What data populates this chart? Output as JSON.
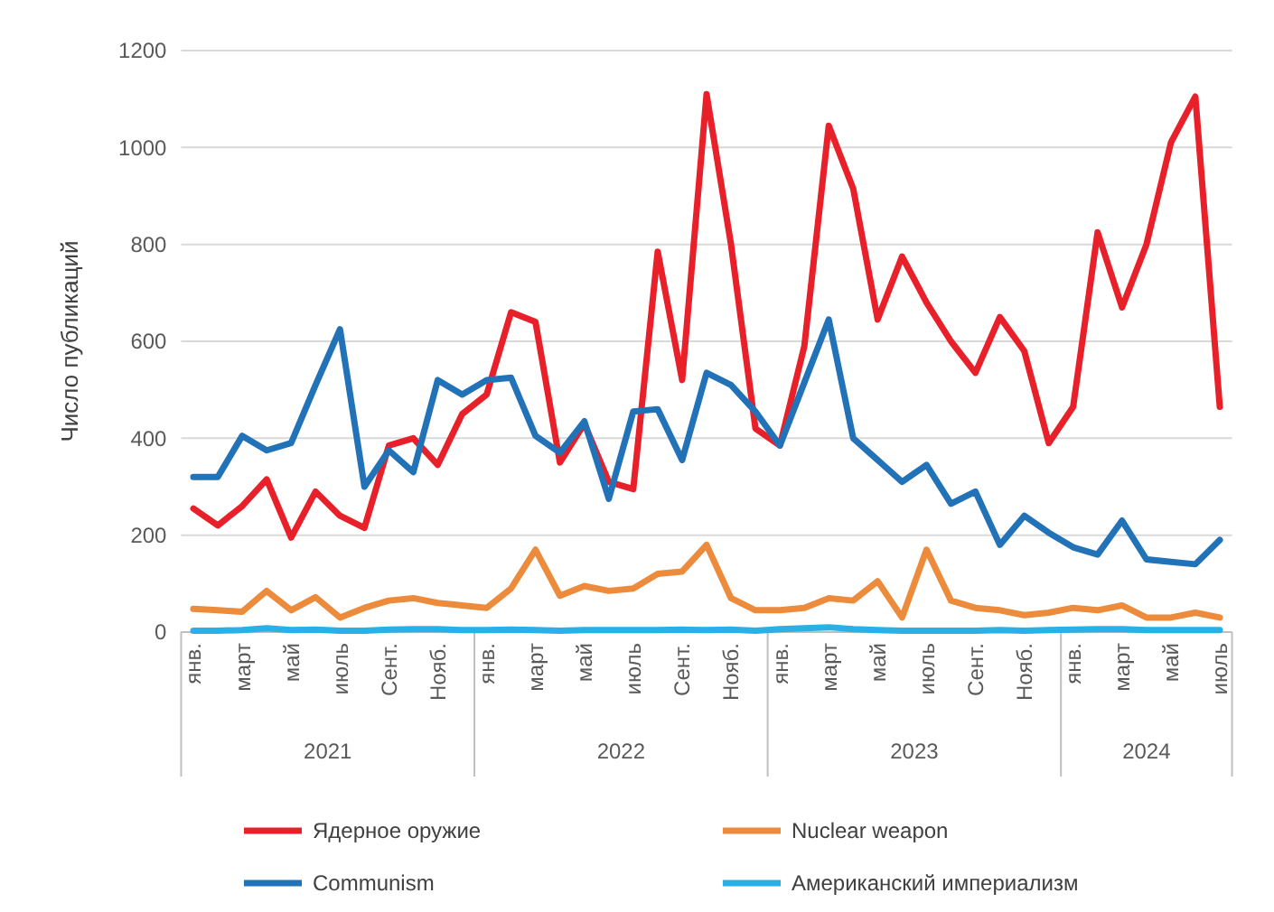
{
  "chart_data": {
    "type": "line",
    "ylabel": "Число публикаций",
    "categories": [
      "янв.",
      null,
      "март",
      null,
      "май",
      null,
      "июль",
      null,
      "Сент.",
      null,
      "Нояб.",
      null,
      "янв.",
      null,
      "март",
      null,
      "май",
      null,
      "июль",
      null,
      "Сент.",
      null,
      "Нояб.",
      null,
      "янв.",
      null,
      "март",
      null,
      "май",
      null,
      "июль",
      null,
      "Сент.",
      null,
      "Нояб.",
      null,
      "янв.",
      null,
      "март",
      null,
      "май",
      null,
      "июль"
    ],
    "annotations": [
      "2021",
      "2022",
      "2023",
      "2024"
    ],
    "ylim": [
      0,
      1200
    ],
    "yticks": [
      0,
      200,
      400,
      600,
      800,
      1000,
      1200
    ],
    "grid": "y",
    "legend": "bottom",
    "line_style": "solid",
    "marker": "none",
    "series": [
      {
        "name": "Ядерное оружие",
        "color": "#e8202a",
        "values": [
          255,
          220,
          260,
          315,
          195,
          290,
          240,
          215,
          385,
          400,
          345,
          450,
          490,
          660,
          640,
          350,
          430,
          310,
          295,
          785,
          520,
          1110,
          800,
          420,
          385,
          590,
          1045,
          915,
          645,
          775,
          680,
          600,
          535,
          650,
          580,
          390,
          465,
          825,
          670,
          800,
          1010,
          1105,
          465
        ]
      },
      {
        "name": "Nuclear weapon",
        "color": "#ed8b3c",
        "values": [
          48,
          45,
          42,
          85,
          45,
          72,
          30,
          50,
          65,
          70,
          60,
          55,
          50,
          90,
          170,
          75,
          95,
          85,
          90,
          120,
          125,
          180,
          70,
          45,
          45,
          50,
          70,
          65,
          105,
          30,
          170,
          65,
          50,
          45,
          35,
          40,
          50,
          45,
          55,
          30,
          30,
          40,
          30
        ]
      },
      {
        "name": "Communism",
        "color": "#2272b8",
        "values": [
          320,
          320,
          405,
          375,
          390,
          510,
          625,
          300,
          375,
          330,
          520,
          490,
          520,
          525,
          405,
          370,
          435,
          275,
          455,
          460,
          355,
          535,
          510,
          455,
          385,
          515,
          645,
          400,
          355,
          310,
          345,
          265,
          290,
          180,
          240,
          205,
          175,
          160,
          230,
          150,
          145,
          140,
          190
        ]
      },
      {
        "name": "Американский империализм",
        "color": "#29b0e6",
        "values": [
          3,
          3,
          4,
          8,
          4,
          5,
          3,
          3,
          5,
          6,
          6,
          4,
          4,
          5,
          4,
          3,
          4,
          4,
          4,
          4,
          5,
          4,
          5,
          3,
          6,
          8,
          10,
          6,
          4,
          3,
          3,
          3,
          3,
          4,
          3,
          4,
          5,
          6,
          6,
          4,
          4,
          4,
          4
        ]
      }
    ]
  }
}
